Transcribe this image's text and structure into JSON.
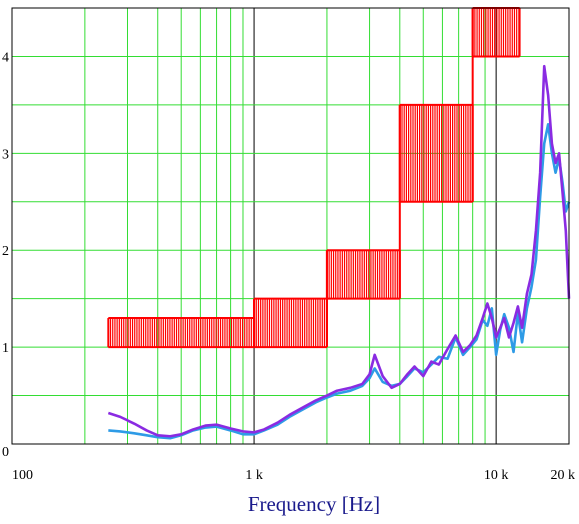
{
  "chart_data": {
    "type": "line",
    "title": "",
    "xlabel": "Frequency [Hz]",
    "ylabel": "",
    "x_scale": "log",
    "xlim": [
      100,
      20000
    ],
    "ylim": [
      0,
      4.5
    ],
    "grid": true,
    "x_ticks": [
      {
        "value": 100,
        "label": "100"
      },
      {
        "value": 1000,
        "label": "1 k"
      },
      {
        "value": 10000,
        "label": "10 k"
      },
      {
        "value": 20000,
        "label": "20 k"
      }
    ],
    "y_ticks": [
      {
        "value": 0,
        "label": "0"
      },
      {
        "value": 1,
        "label": "1"
      },
      {
        "value": 2,
        "label": "2"
      },
      {
        "value": 3,
        "label": "3"
      },
      {
        "value": 4,
        "label": "4"
      }
    ],
    "colors": {
      "grid": "#33dd33",
      "frame": "#000000",
      "band": "#ff0000",
      "series_a": "#2e9be6",
      "series_b": "#8a2be2"
    },
    "bands": [
      {
        "f1": 250,
        "f2": 1000,
        "low": 1.0,
        "high": 1.3
      },
      {
        "f1": 1000,
        "f2": 2000,
        "low": 1.0,
        "high": 1.5
      },
      {
        "f1": 2000,
        "f2": 4000,
        "low": 1.5,
        "high": 2.0
      },
      {
        "f1": 4000,
        "f2": 8000,
        "low": 2.5,
        "high": 3.5
      },
      {
        "f1": 8000,
        "f2": 12500,
        "low": 4.0,
        "high": 4.5
      }
    ],
    "series": [
      {
        "color": "#2e9be6",
        "x": [
          250,
          280,
          320,
          360,
          400,
          450,
          500,
          560,
          630,
          700,
          800,
          900,
          1000,
          1100,
          1250,
          1400,
          1600,
          1800,
          2000,
          2200,
          2500,
          2800,
          3000,
          3150,
          3400,
          3700,
          4000,
          4300,
          4600,
          5000,
          5400,
          5800,
          6300,
          6800,
          7300,
          7800,
          8300,
          8800,
          9200,
          9600,
          10000,
          10400,
          10800,
          11300,
          11800,
          12300,
          12800,
          13400,
          14000,
          14600,
          15200,
          15800,
          16400,
          17000,
          17600,
          18200,
          18800,
          19400,
          20000
        ],
        "y": [
          0.14,
          0.13,
          0.11,
          0.09,
          0.07,
          0.06,
          0.09,
          0.14,
          0.17,
          0.18,
          0.14,
          0.1,
          0.1,
          0.14,
          0.2,
          0.28,
          0.36,
          0.43,
          0.48,
          0.52,
          0.55,
          0.6,
          0.68,
          0.78,
          0.64,
          0.6,
          0.62,
          0.7,
          0.78,
          0.74,
          0.82,
          0.9,
          0.88,
          1.1,
          0.92,
          1.0,
          1.08,
          1.28,
          1.22,
          1.4,
          0.92,
          1.18,
          1.34,
          1.2,
          0.95,
          1.35,
          1.05,
          1.4,
          1.62,
          1.9,
          2.55,
          3.1,
          3.3,
          3.0,
          2.8,
          2.95,
          2.7,
          2.4,
          2.5
        ]
      },
      {
        "color": "#8a2be2",
        "x": [
          250,
          280,
          320,
          360,
          400,
          450,
          500,
          560,
          630,
          700,
          800,
          900,
          1000,
          1100,
          1250,
          1400,
          1600,
          1800,
          2000,
          2200,
          2500,
          2800,
          3000,
          3150,
          3400,
          3700,
          4000,
          4300,
          4600,
          5000,
          5400,
          5800,
          6300,
          6800,
          7300,
          7800,
          8300,
          8800,
          9200,
          9600,
          10000,
          10400,
          10800,
          11300,
          11800,
          12300,
          12800,
          13400,
          14000,
          14600,
          15200,
          15800,
          16400,
          17000,
          17600,
          18200,
          18800,
          19400,
          20000
        ],
        "y": [
          0.32,
          0.28,
          0.21,
          0.14,
          0.09,
          0.08,
          0.1,
          0.15,
          0.19,
          0.2,
          0.16,
          0.13,
          0.12,
          0.15,
          0.22,
          0.3,
          0.38,
          0.45,
          0.5,
          0.55,
          0.58,
          0.62,
          0.72,
          0.92,
          0.7,
          0.58,
          0.62,
          0.72,
          0.8,
          0.7,
          0.85,
          0.82,
          0.98,
          1.12,
          0.95,
          1.02,
          1.12,
          1.3,
          1.45,
          1.3,
          1.1,
          1.2,
          1.3,
          1.1,
          1.25,
          1.42,
          1.2,
          1.55,
          1.75,
          2.2,
          2.8,
          3.9,
          3.6,
          3.1,
          2.9,
          3.0,
          2.6,
          2.2,
          1.5
        ]
      }
    ]
  }
}
